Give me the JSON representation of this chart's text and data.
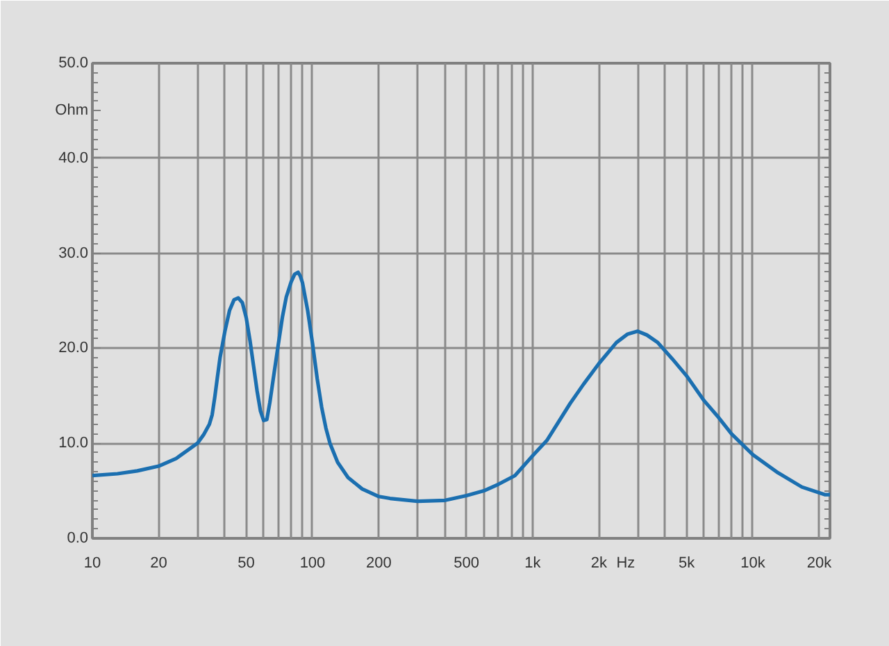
{
  "chart_data": {
    "type": "line",
    "xlabel": "Hz",
    "ylabel": "Ohm",
    "log": "x",
    "grid": true,
    "xlim": [
      10,
      22400
    ],
    "ylim": [
      0,
      50
    ],
    "xticks": [
      10,
      20,
      {
        "value": 30,
        "label": null
      },
      {
        "value": 40,
        "label": null
      },
      50,
      {
        "value": 60,
        "label": null
      },
      {
        "value": 70,
        "label": null
      },
      {
        "value": 80,
        "label": null
      },
      {
        "value": 90,
        "label": null
      },
      100,
      200,
      {
        "value": 300,
        "label": null
      },
      {
        "value": 400,
        "label": null
      },
      500,
      {
        "value": 600,
        "label": null
      },
      {
        "value": 700,
        "label": null
      },
      {
        "value": 800,
        "label": null
      },
      {
        "value": 900,
        "label": null
      },
      {
        "value": 1000,
        "label": "1k"
      },
      {
        "value": 2000,
        "label": "2k"
      },
      {
        "value": 3000,
        "label": null
      },
      {
        "value": 4000,
        "label": null
      },
      {
        "value": 5000,
        "label": "5k"
      },
      {
        "value": 6000,
        "label": null
      },
      {
        "value": 7000,
        "label": null
      },
      {
        "value": 8000,
        "label": null
      },
      {
        "value": 9000,
        "label": null
      },
      {
        "value": 10000,
        "label": "10k"
      },
      {
        "value": 20000,
        "label": "20k"
      }
    ],
    "yticks": [
      {
        "value": 0,
        "label": "0.0"
      },
      {
        "value": 10,
        "label": "10.0"
      },
      {
        "value": 20,
        "label": "20.0"
      },
      {
        "value": 30,
        "label": "30.0"
      },
      {
        "value": 40,
        "label": "40.0"
      },
      {
        "value": 50,
        "label": "50.0"
      }
    ],
    "x": [
      10,
      13,
      16,
      20,
      24,
      30,
      32,
      34,
      35,
      36,
      37,
      38,
      40,
      42,
      44,
      46,
      48,
      50,
      52,
      54,
      56,
      58,
      60,
      62,
      64,
      67,
      70,
      73,
      76,
      80,
      83,
      86,
      88,
      90,
      95,
      100,
      105,
      110,
      115,
      120,
      130,
      145,
      168,
      200,
      225,
      300,
      400,
      500,
      600,
      700,
      830,
      1000,
      1160,
      1480,
      1700,
      2000,
      2400,
      2700,
      3000,
      3300,
      3700,
      4300,
      5000,
      6000,
      7000,
      8000,
      10000,
      13000,
      16700,
      21200,
      22400
    ],
    "series": [
      {
        "color": "#1b6fb0",
        "values": [
          6.6,
          6.8,
          7.1,
          7.6,
          8.4,
          10.0,
          10.9,
          12.0,
          13.0,
          14.9,
          17.0,
          19.0,
          21.8,
          24.0,
          25.1,
          25.3,
          24.8,
          23.2,
          20.8,
          18.1,
          15.5,
          13.4,
          12.4,
          12.5,
          14.3,
          17.5,
          20.5,
          23.3,
          25.4,
          27.0,
          27.8,
          28.0,
          27.6,
          26.9,
          24.0,
          20.5,
          16.8,
          13.8,
          11.6,
          10.0,
          8.0,
          6.4,
          5.2,
          4.4,
          4.2,
          3.9,
          4.0,
          4.5,
          5.0,
          5.7,
          6.6,
          8.7,
          10.3,
          14.2,
          16.2,
          18.4,
          20.6,
          21.5,
          21.8,
          21.4,
          20.6,
          18.9,
          17.1,
          14.5,
          12.7,
          11.0,
          8.8,
          6.9,
          5.4,
          4.6,
          4.6
        ]
      }
    ]
  }
}
